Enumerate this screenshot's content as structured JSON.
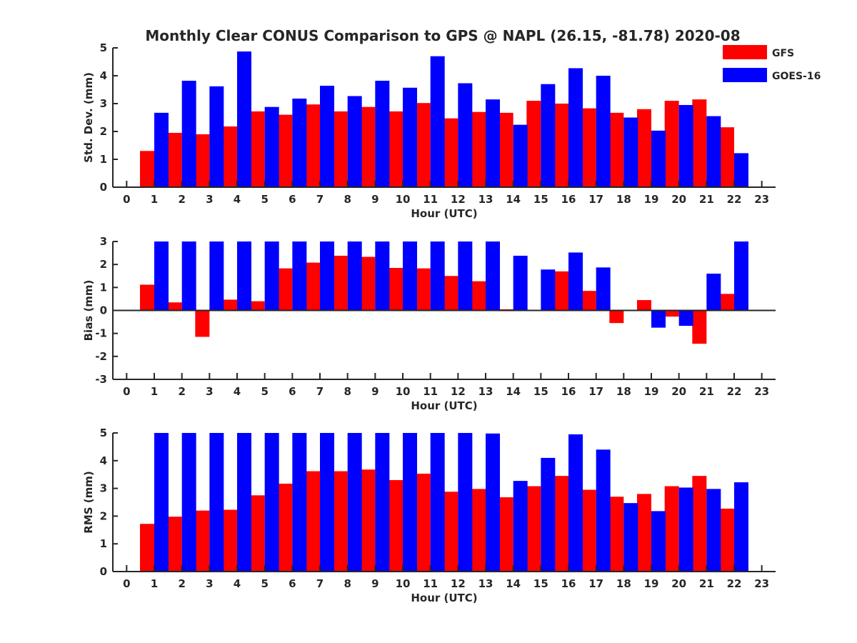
{
  "title": "Monthly Clear CONUS Comparison to GPS @ NAPL (26.15, -81.78) 2020-08",
  "legend": [
    {
      "name": "GFS",
      "color": "#ff0000"
    },
    {
      "name": "GOES-16",
      "color": "#0000ff"
    }
  ],
  "chart_data": [
    {
      "type": "bar",
      "ylabel": "Std. Dev. (mm)",
      "xlabel": "Hour (UTC)",
      "ylim": [
        0,
        5
      ],
      "yticks": [
        0,
        1,
        2,
        3,
        4,
        5
      ],
      "xlim": [
        -0.5,
        23.5
      ],
      "categories": [
        0,
        1,
        2,
        3,
        4,
        5,
        6,
        7,
        8,
        9,
        10,
        11,
        12,
        13,
        14,
        15,
        16,
        17,
        18,
        19,
        20,
        21,
        22,
        23
      ],
      "series": [
        {
          "name": "GFS",
          "color": "#ff0000",
          "values": [
            null,
            1.3,
            1.95,
            1.9,
            2.18,
            2.72,
            2.6,
            2.97,
            2.72,
            2.88,
            2.72,
            3.02,
            2.47,
            2.7,
            2.67,
            3.1,
            3.0,
            2.83,
            2.67,
            2.8,
            3.1,
            3.15,
            2.15,
            null
          ]
        },
        {
          "name": "GOES-16",
          "color": "#0000ff",
          "values": [
            null,
            2.67,
            3.82,
            3.62,
            4.87,
            2.88,
            3.18,
            3.64,
            3.27,
            3.82,
            3.57,
            4.7,
            3.73,
            3.15,
            2.24,
            3.7,
            4.27,
            4.0,
            2.5,
            2.03,
            2.95,
            2.55,
            1.22,
            null
          ]
        }
      ]
    },
    {
      "type": "bar",
      "ylabel": "Bias (mm)",
      "xlabel": "Hour (UTC)",
      "ylim": [
        -3,
        3
      ],
      "yticks": [
        -3,
        -2,
        -1,
        0,
        1,
        2,
        3
      ],
      "xlim": [
        -0.5,
        23.5
      ],
      "categories": [
        0,
        1,
        2,
        3,
        4,
        5,
        6,
        7,
        8,
        9,
        10,
        11,
        12,
        13,
        14,
        15,
        16,
        17,
        18,
        19,
        20,
        21,
        22,
        23
      ],
      "series": [
        {
          "name": "GFS",
          "color": "#ff0000",
          "values": [
            null,
            1.12,
            0.35,
            -1.15,
            0.47,
            0.4,
            1.83,
            2.08,
            2.38,
            2.33,
            1.85,
            1.83,
            1.5,
            1.27,
            0.05,
            0.03,
            1.7,
            0.85,
            -0.55,
            0.45,
            -0.27,
            -1.45,
            0.72,
            null
          ]
        },
        {
          "name": "GOES-16",
          "color": "#0000ff",
          "values": [
            null,
            3.0,
            3.0,
            3.0,
            3.0,
            3.0,
            3.0,
            3.0,
            3.0,
            3.0,
            3.0,
            3.0,
            3.0,
            3.0,
            2.38,
            1.78,
            2.52,
            1.87,
            0.0,
            -0.75,
            -0.67,
            1.6,
            3.0,
            null
          ]
        }
      ]
    },
    {
      "type": "bar",
      "ylabel": "RMS (mm)",
      "xlabel": "Hour (UTC)",
      "ylim": [
        0,
        5
      ],
      "yticks": [
        0,
        1,
        2,
        3,
        4,
        5
      ],
      "xlim": [
        -0.5,
        23.5
      ],
      "categories": [
        0,
        1,
        2,
        3,
        4,
        5,
        6,
        7,
        8,
        9,
        10,
        11,
        12,
        13,
        14,
        15,
        16,
        17,
        18,
        19,
        20,
        21,
        22,
        23
      ],
      "series": [
        {
          "name": "GFS",
          "color": "#ff0000",
          "values": [
            null,
            1.72,
            1.98,
            2.2,
            2.23,
            2.75,
            3.17,
            3.62,
            3.62,
            3.68,
            3.3,
            3.53,
            2.88,
            2.98,
            2.68,
            3.08,
            3.45,
            2.95,
            2.7,
            2.8,
            3.08,
            3.45,
            2.27,
            null
          ]
        },
        {
          "name": "GOES-16",
          "color": "#0000ff",
          "values": [
            null,
            5.0,
            5.0,
            5.0,
            5.0,
            5.0,
            5.0,
            5.0,
            5.0,
            5.0,
            5.0,
            5.0,
            5.0,
            4.98,
            3.27,
            4.1,
            4.95,
            4.4,
            2.47,
            2.18,
            3.03,
            2.98,
            3.22,
            null
          ]
        }
      ]
    }
  ]
}
